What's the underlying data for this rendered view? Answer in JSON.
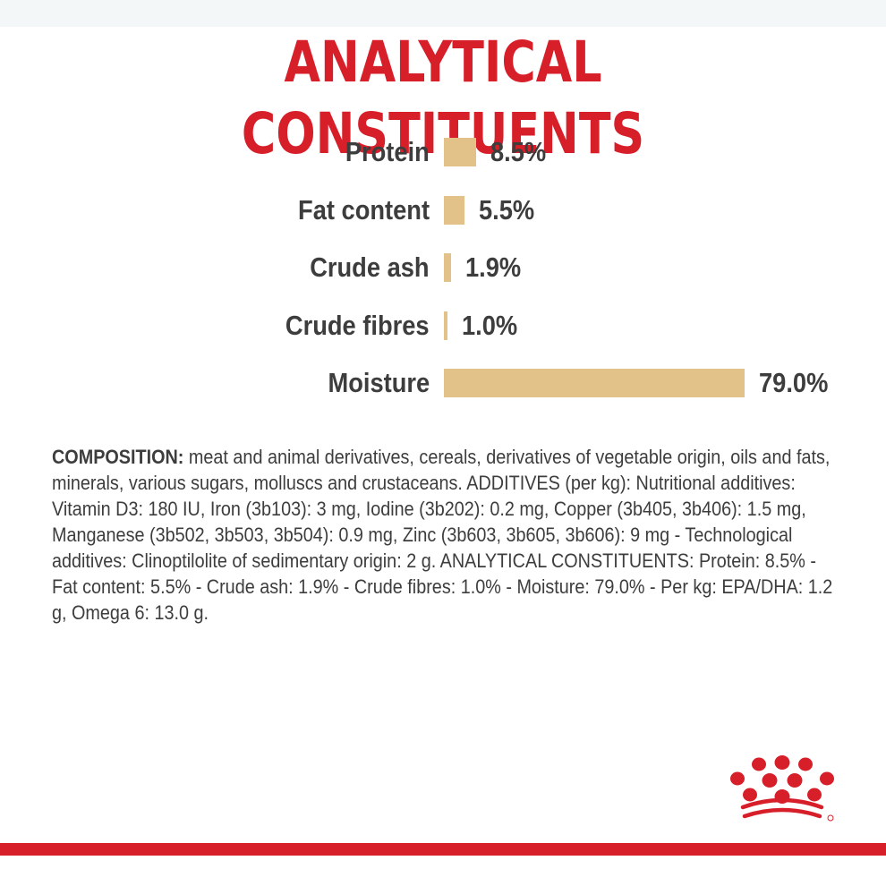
{
  "title": "ANALYTICAL CONSTITUENTS",
  "chart_data": {
    "type": "bar",
    "orientation": "horizontal",
    "title": "ANALYTICAL CONSTITUENTS",
    "categories": [
      "Protein",
      "Fat content",
      "Crude ash",
      "Crude fibres",
      "Moisture"
    ],
    "values": [
      8.5,
      5.5,
      1.9,
      1.0,
      79.0
    ],
    "value_labels": [
      "8.5%",
      "5.5%",
      "1.9%",
      "1.0%",
      "79.0%"
    ],
    "unit": "%",
    "xlim": [
      0,
      79.0
    ],
    "grid": false,
    "bar_color": "#e2c289"
  },
  "composition": {
    "heading": "COMPOSITION:",
    "text": " meat and animal derivatives, cereals, derivatives of vegetable origin, oils and fats, minerals, various sugars, molluscs and crustaceans. ADDITIVES (per kg): Nutritional additives: Vitamin D3: 180 IU, Iron (3b103): 3 mg, Iodine (3b202): 0.2 mg, Copper (3b405, 3b406): 1.5 mg, Manganese (3b502, 3b503, 3b504): 0.9 mg, Zinc (3b603, 3b605, 3b606): 9 mg - Technological additives: Clinoptilolite of sedimentary origin: 2 g. ANALYTICAL CONSTITUENTS: Protein: 8.5% - Fat content: 5.5% - Crude ash: 1.9% - Crude fibres: 1.0% - Moisture: 79.0% - Per kg: EPA/DHA: 1.2 g, Omega 6: 13.0 g."
  },
  "colors": {
    "brand_red": "#d71f2a",
    "text": "#3d3d3d",
    "bar": "#e2c289"
  },
  "logo_icon": "crown-logo-icon"
}
